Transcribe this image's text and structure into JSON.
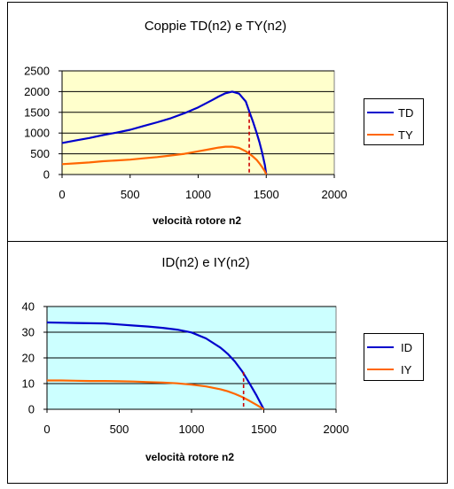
{
  "chart_data": [
    {
      "type": "line",
      "title": "Coppie TD(n2) e TY(n2)",
      "xlabel": "velocità rotore n2",
      "ylabel": "",
      "xlim": [
        0,
        2000
      ],
      "ylim": [
        0,
        2500
      ],
      "xticks": [
        "0",
        "500",
        "1000",
        "1500",
        "2000"
      ],
      "yticks": [
        "0",
        "500",
        "1000",
        "1500",
        "2000",
        "2500"
      ],
      "plot_bg": "#ffffcc",
      "grid": true,
      "legend_position": "right",
      "series": [
        {
          "name": "TD",
          "color": "#0000cc",
          "x": [
            0,
            100,
            200,
            300,
            400,
            500,
            600,
            700,
            800,
            900,
            1000,
            1100,
            1150,
            1200,
            1250,
            1300,
            1350,
            1380,
            1400,
            1430,
            1450,
            1470,
            1490,
            1500
          ],
          "y": [
            760,
            820,
            880,
            950,
            1010,
            1080,
            1170,
            1260,
            1360,
            1480,
            1620,
            1790,
            1880,
            1960,
            2000,
            1950,
            1760,
            1480,
            1300,
            1000,
            780,
            530,
            230,
            0
          ]
        },
        {
          "name": "TY",
          "color": "#ff6600",
          "x": [
            0,
            100,
            200,
            300,
            400,
            500,
            600,
            700,
            800,
            900,
            1000,
            1100,
            1150,
            1200,
            1250,
            1300,
            1350,
            1380,
            1400,
            1430,
            1450,
            1470,
            1490,
            1500
          ],
          "y": [
            250,
            270,
            290,
            320,
            340,
            360,
            390,
            420,
            460,
            500,
            560,
            620,
            650,
            670,
            670,
            640,
            560,
            490,
            440,
            350,
            270,
            180,
            80,
            0
          ]
        }
      ],
      "marker_line": {
        "x": 1375,
        "y": 1480,
        "color": "#cc0000"
      }
    },
    {
      "type": "line",
      "title": "ID(n2) e IY(n2)",
      "xlabel": "velocità rotore n2",
      "ylabel": "",
      "xlim": [
        0,
        2000
      ],
      "ylim": [
        0,
        40
      ],
      "xticks": [
        "0",
        "500",
        "1000",
        "1500",
        "2000"
      ],
      "yticks": [
        "0",
        "10",
        "20",
        "30",
        "40"
      ],
      "plot_bg": "#ccffff",
      "grid": true,
      "legend_position": "right",
      "series": [
        {
          "name": "ID",
          "color": "#0000cc",
          "x": [
            0,
            100,
            200,
            300,
            400,
            500,
            600,
            700,
            800,
            900,
            1000,
            1100,
            1200,
            1250,
            1300,
            1350,
            1400,
            1450,
            1500
          ],
          "y": [
            33.8,
            33.7,
            33.6,
            33.5,
            33.4,
            33.0,
            32.6,
            32.2,
            31.7,
            31.0,
            29.9,
            27.6,
            24.0,
            21.6,
            18.6,
            14.8,
            10.2,
            5.3,
            0
          ]
        },
        {
          "name": "IY",
          "color": "#ff6600",
          "x": [
            0,
            100,
            200,
            300,
            400,
            500,
            600,
            700,
            800,
            900,
            1000,
            1100,
            1200,
            1250,
            1300,
            1350,
            1400,
            1450,
            1500
          ],
          "y": [
            11.2,
            11.2,
            11.1,
            11.0,
            11.0,
            10.9,
            10.8,
            10.6,
            10.4,
            10.1,
            9.6,
            8.9,
            7.8,
            7.0,
            6.0,
            4.8,
            3.3,
            1.7,
            0
          ]
        }
      ],
      "marker_line": {
        "x": 1360,
        "y": 14.5,
        "color": "#cc0000"
      }
    }
  ]
}
